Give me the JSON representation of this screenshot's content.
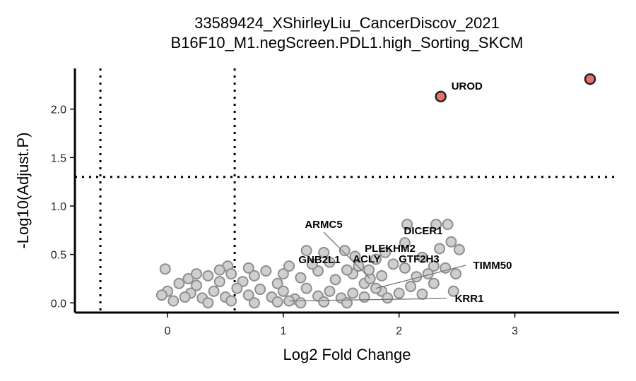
{
  "chart_data": {
    "type": "scatter",
    "title": "33589424_XShirleyLiu_CancerDiscov_2021",
    "subtitle": "B16F10_M1.negScreen.PDL1.high_Sorting_SKCM",
    "xlabel": "Log2 Fold Change",
    "ylabel": "-Log10(Adjust.P)",
    "xlim": [
      -0.8,
      3.9
    ],
    "ylim": [
      -0.1,
      2.42
    ],
    "xticks": [
      "0",
      "1",
      "2",
      "3"
    ],
    "yticks": [
      "0.0",
      "0.5",
      "1.0",
      "1.5",
      "2.0"
    ],
    "thresholds": {
      "vertical": [
        -0.58,
        0.58
      ],
      "horizontal": 1.3
    },
    "grid": false,
    "colors": {
      "significant": "#e8706f",
      "nonsignificant": "#cfcfcf",
      "point_edge": "#8e8e8e",
      "highlight_edge": "#222222"
    },
    "significant_points": [
      {
        "x": 2.36,
        "y": 2.13,
        "label": "UROD"
      },
      {
        "x": 3.65,
        "y": 2.31,
        "label": ""
      }
    ],
    "labeled_points": [
      {
        "x": 1.75,
        "y": 0.25,
        "label": "ARMC5"
      },
      {
        "x": 2.35,
        "y": 0.56,
        "label": "DICER1"
      },
      {
        "x": 1.8,
        "y": 0.45,
        "label": "PLEKHM2"
      },
      {
        "x": 1.55,
        "y": 0.34,
        "label": "GNB2L1"
      },
      {
        "x": 1.74,
        "y": 0.34,
        "label": "ACLY"
      },
      {
        "x": 2.05,
        "y": 0.36,
        "label": "GTF2H3"
      },
      {
        "x": 1.8,
        "y": 0.15,
        "label": "TIMM50"
      },
      {
        "x": 1.05,
        "y": 0.02,
        "label": "KRR1"
      }
    ],
    "nonsignificant_points": [
      {
        "x": -0.02,
        "y": 0.35
      },
      {
        "x": 0.18,
        "y": 0.25
      },
      {
        "x": 0.52,
        "y": 0.38
      },
      {
        "x": 0.85,
        "y": 0.33
      },
      {
        "x": 1.2,
        "y": 0.54
      },
      {
        "x": 1.35,
        "y": 0.52
      },
      {
        "x": 1.53,
        "y": 0.54
      },
      {
        "x": 1.4,
        "y": 0.42
      },
      {
        "x": 1.62,
        "y": 0.48
      },
      {
        "x": 1.88,
        "y": 0.52
      },
      {
        "x": 2.05,
        "y": 0.62
      },
      {
        "x": 2.07,
        "y": 0.81
      },
      {
        "x": 2.32,
        "y": 0.81
      },
      {
        "x": 2.42,
        "y": 0.81
      },
      {
        "x": 2.45,
        "y": 0.63
      },
      {
        "x": 2.52,
        "y": 0.55
      },
      {
        "x": 2.2,
        "y": 0.47
      },
      {
        "x": 2.3,
        "y": 0.38
      },
      {
        "x": 2.49,
        "y": 0.3
      },
      {
        "x": 2.47,
        "y": 0.12
      },
      {
        "x": 2.3,
        "y": 0.2
      },
      {
        "x": 2.15,
        "y": 0.27
      },
      {
        "x": 2.0,
        "y": 0.1
      },
      {
        "x": 1.95,
        "y": 0.4
      },
      {
        "x": 1.85,
        "y": 0.28
      },
      {
        "x": 1.7,
        "y": 0.2
      },
      {
        "x": 1.6,
        "y": 0.3
      },
      {
        "x": 1.45,
        "y": 0.24
      },
      {
        "x": 1.3,
        "y": 0.33
      },
      {
        "x": 1.15,
        "y": 0.26
      },
      {
        "x": 1.0,
        "y": 0.3
      },
      {
        "x": 0.95,
        "y": 0.2
      },
      {
        "x": 0.75,
        "y": 0.28
      },
      {
        "x": 0.65,
        "y": 0.22
      },
      {
        "x": 0.55,
        "y": 0.3
      },
      {
        "x": 0.45,
        "y": 0.22
      },
      {
        "x": 0.35,
        "y": 0.28
      },
      {
        "x": 0.25,
        "y": 0.18
      },
      {
        "x": 0.1,
        "y": 0.2
      },
      {
        "x": 0.0,
        "y": 0.12
      },
      {
        "x": -0.05,
        "y": 0.08
      },
      {
        "x": 0.05,
        "y": 0.02
      },
      {
        "x": 0.2,
        "y": 0.1
      },
      {
        "x": 0.3,
        "y": 0.05
      },
      {
        "x": 0.4,
        "y": 0.12
      },
      {
        "x": 0.5,
        "y": 0.06
      },
      {
        "x": 0.6,
        "y": 0.15
      },
      {
        "x": 0.7,
        "y": 0.08
      },
      {
        "x": 0.8,
        "y": 0.14
      },
      {
        "x": 0.9,
        "y": 0.06
      },
      {
        "x": 1.0,
        "y": 0.12
      },
      {
        "x": 1.1,
        "y": 0.04
      },
      {
        "x": 1.2,
        "y": 0.15
      },
      {
        "x": 1.3,
        "y": 0.07
      },
      {
        "x": 1.4,
        "y": 0.12
      },
      {
        "x": 1.5,
        "y": 0.05
      },
      {
        "x": 1.6,
        "y": 0.1
      },
      {
        "x": 1.7,
        "y": 0.06
      },
      {
        "x": 1.85,
        "y": 0.12
      },
      {
        "x": 1.9,
        "y": 0.05
      },
      {
        "x": 2.1,
        "y": 0.17
      },
      {
        "x": 2.2,
        "y": 0.09
      },
      {
        "x": 0.15,
        "y": 0.06
      },
      {
        "x": 0.35,
        "y": 0.0
      },
      {
        "x": 0.55,
        "y": 0.02
      },
      {
        "x": 0.75,
        "y": 0.0
      },
      {
        "x": 0.95,
        "y": 0.01
      },
      {
        "x": 1.15,
        "y": 0.0
      },
      {
        "x": 1.35,
        "y": 0.01
      },
      {
        "x": 1.55,
        "y": 0.0
      },
      {
        "x": 0.25,
        "y": 0.3
      },
      {
        "x": 0.45,
        "y": 0.34
      },
      {
        "x": 0.7,
        "y": 0.36
      },
      {
        "x": 1.05,
        "y": 0.38
      },
      {
        "x": 1.25,
        "y": 0.4
      },
      {
        "x": 1.65,
        "y": 0.38
      },
      {
        "x": 2.25,
        "y": 0.3
      },
      {
        "x": 2.4,
        "y": 0.36
      }
    ]
  }
}
